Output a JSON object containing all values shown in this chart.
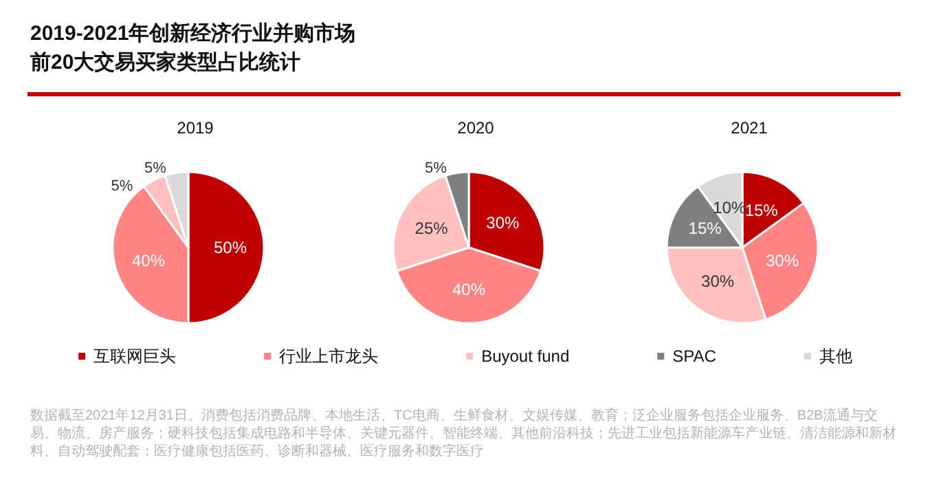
{
  "chart_data": {
    "type": "pie",
    "title": "2019-2021年创新经济行业并购市场前20大交易买家类型占比统计",
    "categories": [
      "互联网巨头",
      "行业上市龙头",
      "Buyout fund",
      "SPAC",
      "其他"
    ],
    "colors": [
      "#c00000",
      "#ff8585",
      "#ffc0c0",
      "#7f7f7f",
      "#d9d9d9"
    ],
    "legend": "bottom",
    "series": [
      {
        "name": "2019",
        "values": [
          50,
          40,
          5,
          0,
          5
        ],
        "value_labels": [
          "50%",
          "40%",
          "5%",
          null,
          "5%"
        ]
      },
      {
        "name": "2020",
        "values": [
          30,
          40,
          25,
          5,
          0
        ],
        "value_labels": [
          "30%",
          "40%",
          "25%",
          "5%",
          null
        ]
      },
      {
        "name": "2021",
        "values": [
          15,
          30,
          30,
          15,
          10
        ],
        "value_labels": [
          "15%",
          "30%",
          "30%",
          "15%",
          "10%"
        ]
      }
    ],
    "annotations": [
      "数据截至2021年12月31日。消费包括消费品牌、本地生活、TC电商、生鲜食材、文娱传媒、教育；泛企业服务包括企业服务、B2B流通与交易、物流、房产服务；硬科技包括集成电路和半导体、关键元器件、智能终端、其他前沿科技；先进工业包括新能源车产业链、清洁能源和新材料、自动驾驶配套；医疗健康包括医药、诊断和器械、医疗服务和数字医疗"
    ]
  }
}
